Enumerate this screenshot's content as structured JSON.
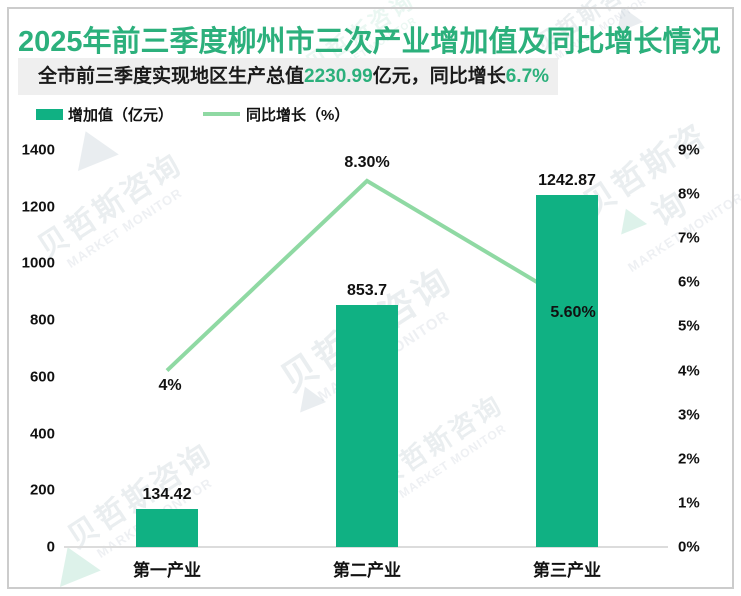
{
  "title": "2025年前三季度柳州市三次产业增加值及同比增长情况",
  "subtitle": {
    "part1": "全市前三季度实现地区生产总值",
    "value1": "2230.99",
    "part2": "亿元，同比增长",
    "value2": "6.7%"
  },
  "watermark": {
    "cn": "贝哲斯咨询",
    "en": "MARKET MONITOR"
  },
  "colors": {
    "title_green": "#2CB07C",
    "bar_green": "#10B183",
    "line_green": "#8FD9A3",
    "subtitle_bg": "#EFEFEF",
    "axis_line": "#DCDCDC"
  },
  "chart_data": {
    "type": "bar+line",
    "title": "2025年前三季度柳州市三次产业增加值及同比增长情况",
    "categories": [
      "第一产业",
      "第二产业",
      "第三产业"
    ],
    "series": [
      {
        "name": "增加值（亿元）",
        "type": "bar",
        "axis": "left",
        "values": [
          134.42,
          853.7,
          1242.87
        ],
        "labels": [
          "134.42",
          "853.7",
          "1242.87"
        ],
        "color": "#10B183"
      },
      {
        "name": "同比增长（%）",
        "type": "line",
        "axis": "right",
        "values": [
          4,
          8.3,
          5.6
        ],
        "labels": [
          "4%",
          "8.30%",
          "5.60%"
        ],
        "color": "#8FD9A3"
      }
    ],
    "left_axis": {
      "min": 0,
      "max": 1400,
      "step": 200,
      "ticks": [
        "1400",
        "1200",
        "1000",
        "800",
        "600",
        "400",
        "200",
        "0"
      ]
    },
    "right_axis": {
      "min": 0,
      "max": 9,
      "step": 1,
      "ticks": [
        "9%",
        "8%",
        "7%",
        "6%",
        "5%",
        "4%",
        "3%",
        "2%",
        "1%",
        "0%"
      ]
    },
    "grid": false,
    "legend_position": "top-left"
  }
}
